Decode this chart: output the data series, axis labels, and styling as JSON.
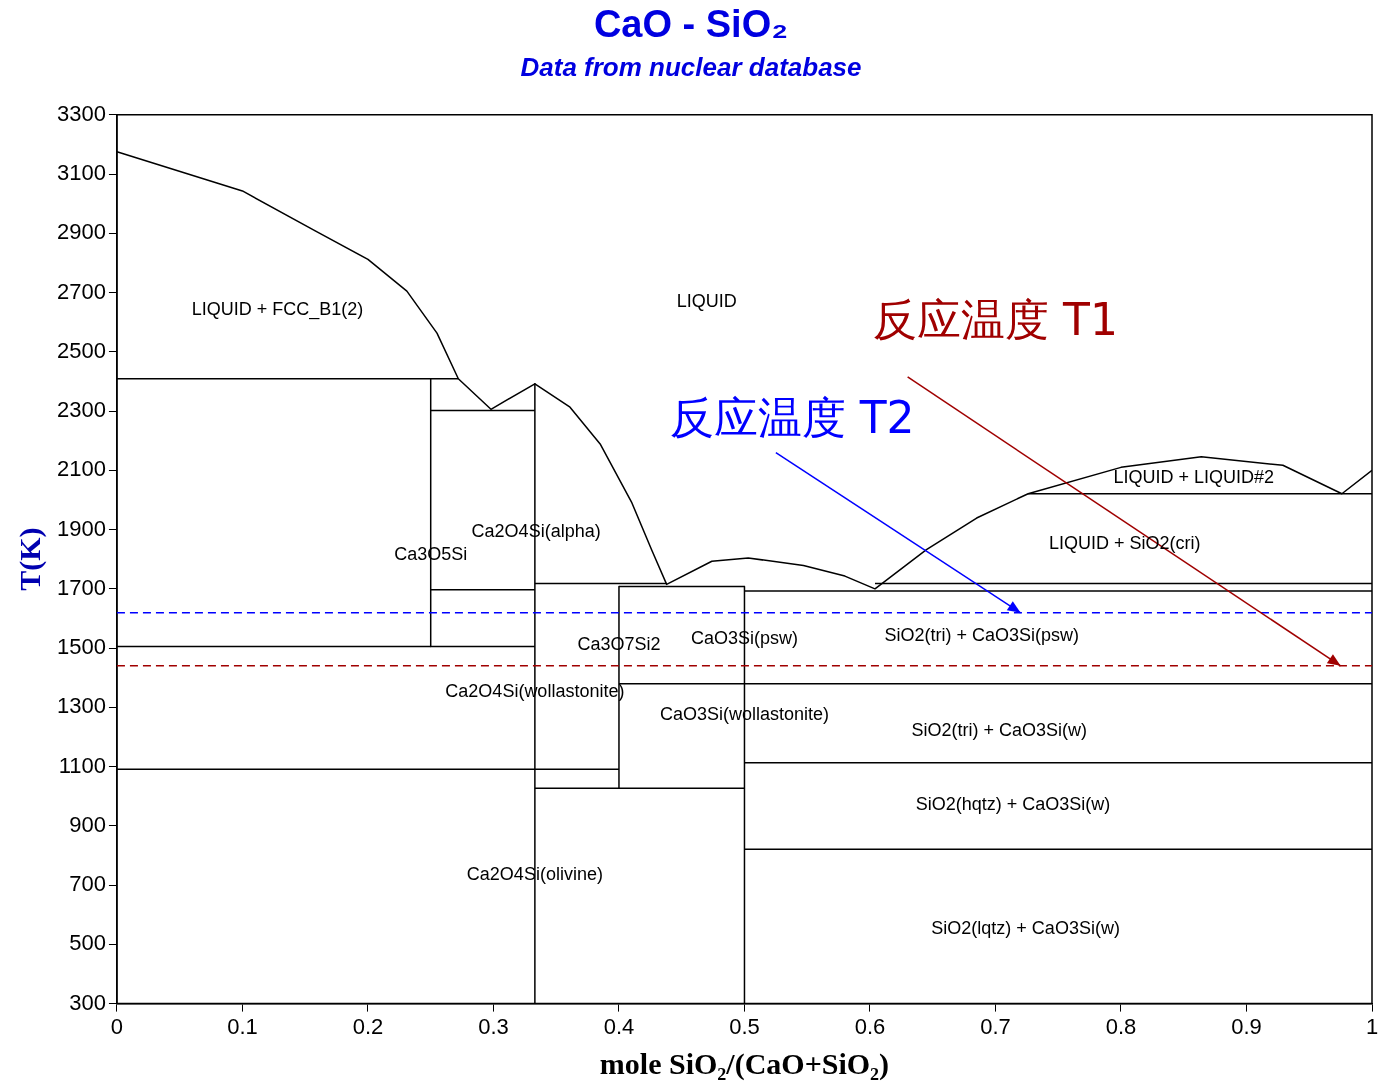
{
  "chart_data": {
    "type": "line",
    "title": "CaO - SiO₂",
    "subtitle": "Data from nuclear database",
    "xlabel": "mole SiO₂/(CaO+SiO₂)",
    "ylabel": "T(K)",
    "xlim": [
      0,
      1
    ],
    "xticks": [
      0,
      0.1,
      0.2,
      0.3,
      0.4,
      0.5,
      0.6,
      0.7,
      0.8,
      0.9,
      1
    ],
    "ylim": [
      300,
      3300
    ],
    "yticks": [
      300,
      500,
      700,
      900,
      1100,
      1300,
      1500,
      1700,
      1900,
      2100,
      2300,
      2500,
      2700,
      2900,
      3100,
      3300
    ],
    "grid": false,
    "legend": false,
    "marker": "none",
    "line_style": "solid",
    "series": [
      {
        "color": "#000000",
        "x": [
          0,
          0.1,
          0.158,
          0.2,
          0.231,
          0.255,
          0.272,
          0.298,
          0.333,
          0.361,
          0.385,
          0.41,
          0.426,
          0.438,
          0.474,
          0.503,
          0.547,
          0.58,
          0.604,
          0.645,
          0.685,
          0.726,
          0.8,
          0.864,
          0.929,
          0.976,
          1
        ],
        "values": [
          3175,
          3043,
          2908,
          2812,
          2705,
          2563,
          2409,
          2306,
          2392,
          2313,
          2189,
          1993,
          1832,
          1715,
          1793,
          1804,
          1779,
          1743,
          1700,
          1832,
          1939,
          2021,
          2110,
          2146,
          2117,
          2021,
          2100
        ]
      },
      {
        "type": "line",
        "color": "#000000",
        "x": [
          0.726,
          1
        ],
        "values": [
          2021,
          2021
        ]
      },
      {
        "type": "line",
        "color": "#000000",
        "x": [
          0,
          0.272
        ],
        "values": [
          2409,
          2409
        ]
      },
      {
        "type": "line",
        "color": "#000000",
        "x": [
          0.25,
          0.25
        ],
        "values": [
          2409,
          1505
        ]
      },
      {
        "type": "line",
        "color": "#000000",
        "x": [
          0.25,
          0.333
        ],
        "values": [
          2302,
          2302
        ]
      },
      {
        "type": "line",
        "color": "#000000",
        "x": [
          0.333,
          0.333
        ],
        "values": [
          2392,
          300
        ]
      },
      {
        "type": "line",
        "color": "#000000",
        "x": [
          0.25,
          0.333
        ],
        "values": [
          1697,
          1697
        ]
      },
      {
        "type": "line",
        "color": "#000000",
        "x": [
          0,
          0.333
        ],
        "values": [
          1505,
          1505
        ]
      },
      {
        "type": "line",
        "color": "#000000",
        "x": [
          0.333,
          0.438
        ],
        "values": [
          1718,
          1718
        ]
      },
      {
        "type": "line",
        "color": "#000000",
        "x": [
          0.4,
          0.5
        ],
        "values": [
          1708,
          1708
        ]
      },
      {
        "type": "line",
        "color": "#000000",
        "x": [
          0.4,
          0.4
        ],
        "values": [
          1708,
          1027
        ]
      },
      {
        "type": "line",
        "color": "#000000",
        "x": [
          0.5,
          0.5
        ],
        "values": [
          1708,
          300
        ]
      },
      {
        "type": "line",
        "color": "#000000",
        "x": [
          0.604,
          1
        ],
        "values": [
          1718,
          1718
        ]
      },
      {
        "type": "line",
        "color": "#000000",
        "x": [
          0.5,
          1
        ],
        "values": [
          1693,
          1693
        ]
      },
      {
        "type": "line",
        "color": "#000000",
        "x": [
          0.4,
          1
        ],
        "values": [
          1380,
          1380
        ]
      },
      {
        "type": "line",
        "color": "#000000",
        "x": [
          0,
          0.4
        ],
        "values": [
          1091,
          1091
        ]
      },
      {
        "type": "line",
        "color": "#000000",
        "x": [
          0.5,
          1
        ],
        "values": [
          1113,
          1113
        ]
      },
      {
        "type": "line",
        "color": "#000000",
        "x": [
          0.333,
          0.5
        ],
        "values": [
          1027,
          1027
        ]
      },
      {
        "type": "line",
        "color": "#000000",
        "x": [
          0.5,
          1
        ],
        "values": [
          821,
          821
        ]
      }
    ],
    "ref_lines": [
      {
        "axis": "y",
        "value": 1619,
        "label": "反应温度 T2",
        "color": "#0000ff",
        "line_style": "dashed"
      },
      {
        "axis": "y",
        "value": 1440,
        "label": "反应温度 T1",
        "color": "#a00000",
        "line_style": "dashed"
      }
    ],
    "annotations": [
      "LIQUID + FCC_B1(2)",
      "LIQUID",
      "Ca2O4Si(alpha)",
      "Ca3O5Si",
      "Ca3O7Si2",
      "CaO3Si(psw)",
      "SiO2(tri) + CaO3Si(psw)",
      "Ca2O4Si(wollastonite)",
      "CaO3Si(wollastonite)",
      "SiO2(tri) + CaO3Si(w)",
      "SiO2(hqtz) + CaO3Si(w)",
      "Ca2O4Si(olivine)",
      "SiO2(lqtz) + CaO3Si(w)",
      "LIQUID + SiO2(cri)",
      "LIQUID + LIQUID#2"
    ]
  }
}
